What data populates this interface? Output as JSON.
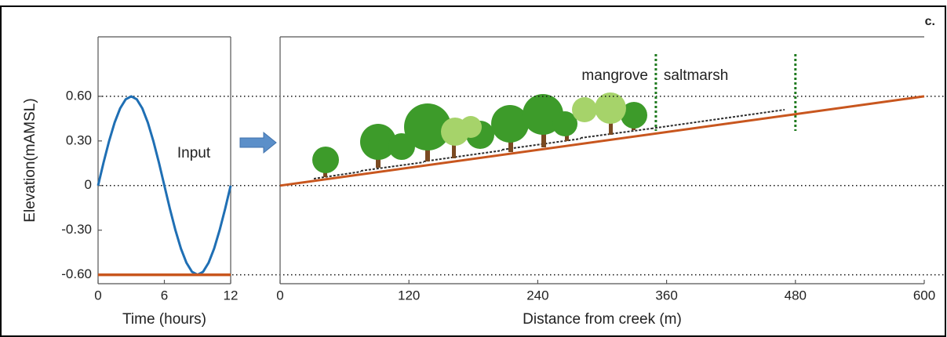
{
  "panel_label": "c.",
  "chart_data": [
    {
      "type": "line",
      "xlabel": "Time (hours)",
      "ylabel": "Elevation(mAMSL)",
      "annotation": "Input",
      "xlim": [
        0,
        12
      ],
      "ylim": [
        -0.66,
        1.0
      ],
      "xticks": [
        0,
        6,
        12
      ],
      "yticks": [
        {
          "value": 0.6,
          "label": "0.60"
        },
        {
          "value": 0.3,
          "label": "0.30"
        },
        0,
        {
          "value": -0.3,
          "label": "-0.30"
        },
        {
          "value": -0.6,
          "label": "-0.60"
        }
      ],
      "hlines": [
        0.6,
        0,
        -0.6
      ],
      "series": [
        {
          "color": "#1f6fb4",
          "width": 3,
          "x": [
            0,
            0.5,
            1,
            1.5,
            2,
            2.5,
            3,
            3.5,
            4,
            4.5,
            5,
            5.5,
            6,
            6.5,
            7,
            7.5,
            8,
            8.5,
            9,
            9.5,
            10,
            10.5,
            11,
            11.5,
            12
          ],
          "values": [
            0,
            0.155,
            0.3,
            0.424,
            0.52,
            0.58,
            0.6,
            0.58,
            0.52,
            0.424,
            0.3,
            0.155,
            0,
            -0.155,
            -0.3,
            -0.424,
            -0.52,
            -0.58,
            -0.6,
            -0.58,
            -0.52,
            -0.424,
            -0.3,
            -0.155,
            0
          ]
        },
        {
          "color": "#c8561e",
          "width": 3.5,
          "x": [
            0,
            12
          ],
          "values": [
            -0.6,
            -0.6
          ]
        }
      ]
    },
    {
      "type": "line",
      "xlabel": "Distance from creek (m)",
      "xlim": [
        0,
        600
      ],
      "ylim": [
        -0.66,
        1.0
      ],
      "xticks": [
        0,
        120,
        240,
        360,
        480,
        600
      ],
      "hlines": [
        0.6,
        0,
        -0.6
      ],
      "zone_boundaries": [
        350,
        480
      ],
      "zone_labels": [
        "mangrove",
        "saltmarsh"
      ],
      "series": [
        {
          "color": "#c8561e",
          "width": 3,
          "x": [
            0,
            600
          ],
          "values": [
            0,
            0.6
          ]
        }
      ]
    }
  ]
}
